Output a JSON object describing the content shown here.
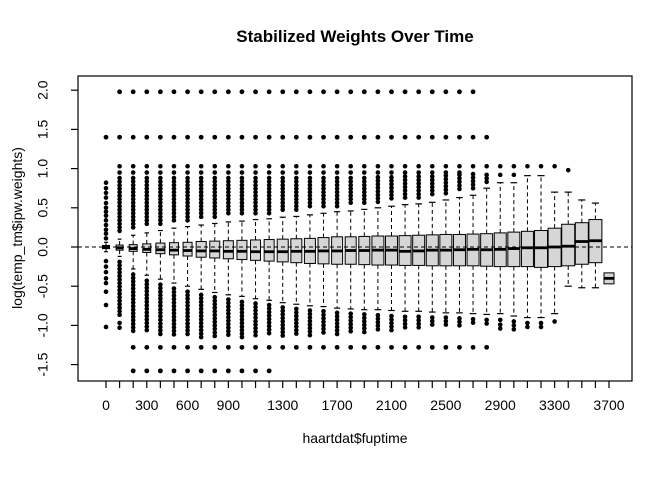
{
  "title": "Stabilized Weights Over Time",
  "chart_data": {
    "type": "boxplot",
    "title": "Stabilized Weights Over Time",
    "xlabel": "haartdat$fuptime",
    "ylabel": "log(temp_tm$ipw.weights)",
    "ylim": [
      -1.7,
      2.17
    ],
    "grid": false,
    "legend": null,
    "reference_line": {
      "value": 0,
      "style": "dashed"
    },
    "colors": {
      "box_fill": "#d6d6d6",
      "stroke": "#000000",
      "background": "#ffffff"
    },
    "y_ticks": [
      {
        "text": "-1.5",
        "value": -1.5
      },
      {
        "text": "-1.0",
        "value": -1.0
      },
      {
        "text": "-0.5",
        "value": -0.5
      },
      {
        "text": "0.0",
        "value": 0.0
      },
      {
        "text": "0.5",
        "value": 0.5
      },
      {
        "text": "1.0",
        "value": 1.0
      },
      {
        "text": "1.5",
        "value": 1.5
      },
      {
        "text": "2.0",
        "value": 2.0
      }
    ],
    "x_tick_labels": [
      {
        "text": "0",
        "index": 0
      },
      {
        "text": "300",
        "index": 3
      },
      {
        "text": "600",
        "index": 6
      },
      {
        "text": "900",
        "index": 9
      },
      {
        "text": "1300",
        "index": 13
      },
      {
        "text": "1700",
        "index": 17
      },
      {
        "text": "2100",
        "index": 21
      },
      {
        "text": "2500",
        "index": 25
      },
      {
        "text": "2900",
        "index": 29
      },
      {
        "text": "3300",
        "index": 33
      },
      {
        "text": "3700",
        "index": 37
      }
    ],
    "column_dot_step": 0.045,
    "outlier_rows": [
      {
        "value": 1.98,
        "from_index": 1,
        "to_index": 27
      },
      {
        "value": 1.4,
        "from_index": 0,
        "to_index": 28
      },
      {
        "value": -1.28,
        "from_index": 2,
        "to_index": 28
      },
      {
        "value": -1.58,
        "from_index": 2,
        "to_index": 12
      }
    ],
    "boxes": [
      {
        "t": 0,
        "q1": -0.02,
        "med": 0.0,
        "q3": 0.02,
        "wlo": -0.06,
        "whi": 0.06,
        "w": 7,
        "ucol": null,
        "udots": [
          0.82,
          0.75,
          0.69,
          0.63,
          0.56,
          0.5,
          0.45,
          0.4,
          0.34,
          0.28,
          0.22,
          0.17,
          0.11
        ],
        "lcol": null,
        "ldots": [
          -0.18,
          -0.25,
          -0.32,
          -0.4,
          -0.46,
          -0.57,
          -0.74,
          -1.02
        ]
      },
      {
        "t": 100,
        "q1": -0.04,
        "med": -0.01,
        "q3": 0.025,
        "wlo": -0.12,
        "whi": 0.1,
        "w": 7,
        "ucol": [
          0.18,
          0.88
        ],
        "udots": [
          1.03,
          0.95
        ],
        "lcol": [
          -0.87,
          -0.19
        ],
        "ldots": [
          -0.97,
          -1.03
        ]
      },
      {
        "t": 200,
        "q1": -0.055,
        "med": -0.02,
        "q3": 0.03,
        "wlo": -0.28,
        "whi": 0.15,
        "w": 8,
        "ucol": [
          0.22,
          0.88
        ],
        "udots": [
          1.03,
          0.95
        ],
        "lcol": [
          -1.08,
          -0.35
        ],
        "ldots": []
      },
      {
        "t": 300,
        "q1": -0.07,
        "med": -0.03,
        "q3": 0.04,
        "wlo": -0.36,
        "whi": 0.18,
        "w": 8,
        "ucol": [
          0.26,
          0.88
        ],
        "udots": [
          1.03,
          0.95
        ],
        "lcol": [
          -1.1,
          -0.43
        ],
        "ldots": []
      },
      {
        "t": 400,
        "q1": -0.085,
        "med": -0.035,
        "q3": 0.05,
        "wlo": -0.41,
        "whi": 0.21,
        "w": 9,
        "ucol": [
          0.28,
          0.88
        ],
        "udots": [
          1.03,
          0.95
        ],
        "lcol": [
          -1.12,
          -0.48
        ],
        "ldots": []
      },
      {
        "t": 500,
        "q1": -0.1,
        "med": -0.04,
        "q3": 0.055,
        "wlo": -0.46,
        "whi": 0.24,
        "w": 9,
        "ucol": [
          0.31,
          0.88
        ],
        "udots": [
          1.03,
          0.95
        ],
        "lcol": [
          -1.14,
          -0.53
        ],
        "ldots": []
      },
      {
        "t": 600,
        "q1": -0.115,
        "med": -0.045,
        "q3": 0.06,
        "wlo": -0.5,
        "whi": 0.26,
        "w": 9,
        "ucol": [
          0.33,
          0.88
        ],
        "udots": [
          1.03,
          0.95
        ],
        "lcol": [
          -1.15,
          -0.57
        ],
        "ldots": []
      },
      {
        "t": 700,
        "q1": -0.13,
        "med": -0.05,
        "q3": 0.07,
        "wlo": -0.54,
        "whi": 0.28,
        "w": 10,
        "ucol": [
          0.35,
          0.88
        ],
        "udots": [
          1.03,
          0.95
        ],
        "lcol": [
          -1.15,
          -0.61
        ],
        "ldots": []
      },
      {
        "t": 800,
        "q1": -0.14,
        "med": -0.05,
        "q3": 0.075,
        "wlo": -0.58,
        "whi": 0.3,
        "w": 10,
        "ucol": [
          0.37,
          0.88
        ],
        "udots": [
          1.03,
          0.95
        ],
        "lcol": [
          -1.15,
          -0.64
        ],
        "ldots": []
      },
      {
        "t": 900,
        "q1": -0.15,
        "med": -0.055,
        "q3": 0.08,
        "wlo": -0.61,
        "whi": 0.32,
        "w": 10,
        "ucol": [
          0.39,
          0.88
        ],
        "udots": [
          1.03,
          0.95
        ],
        "lcol": [
          -1.15,
          -0.67
        ],
        "ldots": []
      },
      {
        "t": 1000,
        "q1": -0.16,
        "med": -0.055,
        "q3": 0.085,
        "wlo": -0.63,
        "whi": 0.33,
        "w": 10,
        "ucol": [
          0.4,
          0.88
        ],
        "udots": [
          1.03,
          0.95
        ],
        "lcol": [
          -1.15,
          -0.7
        ],
        "ldots": []
      },
      {
        "t": 1100,
        "q1": -0.17,
        "med": -0.06,
        "q3": 0.09,
        "wlo": -0.66,
        "whi": 0.35,
        "w": 10,
        "ucol": [
          0.42,
          0.88
        ],
        "udots": [
          1.03,
          0.95
        ],
        "lcol": [
          -1.15,
          -0.72
        ],
        "ldots": []
      },
      {
        "t": 1200,
        "q1": -0.18,
        "med": -0.06,
        "q3": 0.095,
        "wlo": -0.68,
        "whi": 0.36,
        "w": 10,
        "ucol": [
          0.43,
          0.88
        ],
        "udots": [
          1.03,
          0.95
        ],
        "lcol": [
          -1.14,
          -0.74
        ],
        "ldots": []
      },
      {
        "t": 1300,
        "q1": -0.19,
        "med": -0.06,
        "q3": 0.1,
        "wlo": -0.71,
        "whi": 0.38,
        "w": 11,
        "ucol": [
          0.45,
          0.88
        ],
        "udots": [
          1.03,
          0.95
        ],
        "lcol": [
          -1.14,
          -0.77
        ],
        "ldots": []
      },
      {
        "t": 1400,
        "q1": -0.2,
        "med": -0.055,
        "q3": 0.105,
        "wlo": -0.73,
        "whi": 0.39,
        "w": 11,
        "ucol": [
          0.46,
          0.88
        ],
        "udots": [
          1.03,
          0.95
        ],
        "lcol": [
          -1.13,
          -0.79
        ],
        "ldots": []
      },
      {
        "t": 1500,
        "q1": -0.21,
        "med": -0.055,
        "q3": 0.11,
        "wlo": -0.75,
        "whi": 0.41,
        "w": 11,
        "ucol": [
          0.48,
          0.88
        ],
        "udots": [
          1.03,
          0.95
        ],
        "lcol": [
          -1.13,
          -0.81
        ],
        "ldots": []
      },
      {
        "t": 1600,
        "q1": -0.215,
        "med": -0.05,
        "q3": 0.12,
        "wlo": -0.76,
        "whi": 0.43,
        "w": 11,
        "ucol": [
          0.5,
          0.88
        ],
        "udots": [
          1.03,
          0.95
        ],
        "lcol": [
          -1.12,
          -0.82
        ],
        "ldots": []
      },
      {
        "t": 1700,
        "q1": -0.22,
        "med": -0.05,
        "q3": 0.13,
        "wlo": -0.78,
        "whi": 0.45,
        "w": 11,
        "ucol": [
          0.52,
          0.88
        ],
        "udots": [
          1.03,
          0.95
        ],
        "lcol": [
          -1.12,
          -0.84
        ],
        "ldots": []
      },
      {
        "t": 1800,
        "q1": -0.22,
        "med": -0.045,
        "q3": 0.13,
        "wlo": -0.79,
        "whi": 0.46,
        "w": 11,
        "ucol": [
          0.53,
          0.88
        ],
        "udots": [
          1.03,
          0.95
        ],
        "lcol": [
          -1.11,
          -0.85
        ],
        "ldots": []
      },
      {
        "t": 1900,
        "q1": -0.225,
        "med": -0.045,
        "q3": 0.135,
        "wlo": -0.8,
        "whi": 0.48,
        "w": 11,
        "ucol": [
          0.55,
          0.88
        ],
        "udots": [
          1.03,
          0.95
        ],
        "lcol": [
          -1.1,
          -0.86
        ],
        "ldots": []
      },
      {
        "t": 2000,
        "q1": -0.23,
        "med": -0.04,
        "q3": 0.14,
        "wlo": -0.8,
        "whi": 0.5,
        "w": 12,
        "ucol": [
          0.57,
          0.89
        ],
        "udots": [
          1.03,
          0.95
        ],
        "lcol": [
          -1.08,
          -0.87
        ],
        "ldots": []
      },
      {
        "t": 2100,
        "q1": -0.23,
        "med": -0.04,
        "q3": 0.14,
        "wlo": -0.81,
        "whi": 0.52,
        "w": 12,
        "ucol": [
          0.59,
          0.89
        ],
        "udots": [
          1.03,
          0.95
        ],
        "lcol": [
          -1.06,
          -0.88
        ],
        "ldots": []
      },
      {
        "t": 2200,
        "q1": -0.235,
        "med": -0.055,
        "q3": 0.145,
        "wlo": -0.82,
        "whi": 0.54,
        "w": 12,
        "ucol": [
          0.61,
          0.9
        ],
        "udots": [
          1.03,
          0.95
        ],
        "lcol": [
          -1.05,
          -0.89
        ],
        "ldots": []
      },
      {
        "t": 2300,
        "q1": -0.235,
        "med": -0.05,
        "q3": 0.15,
        "wlo": -0.82,
        "whi": 0.55,
        "w": 12,
        "ucol": [
          0.62,
          0.9
        ],
        "udots": [
          1.03,
          0.95
        ],
        "lcol": [
          -1.04,
          -0.89
        ],
        "ldots": []
      },
      {
        "t": 2400,
        "q1": -0.24,
        "med": -0.04,
        "q3": 0.155,
        "wlo": -0.83,
        "whi": 0.57,
        "w": 12,
        "ucol": [
          0.64,
          0.9
        ],
        "udots": [
          1.03,
          0.95
        ],
        "lcol": [
          -1.03,
          -0.9
        ],
        "ldots": []
      },
      {
        "t": 2500,
        "q1": -0.24,
        "med": -0.04,
        "q3": 0.16,
        "wlo": -0.84,
        "whi": 0.6,
        "w": 12,
        "ucol": [
          0.67,
          0.91
        ],
        "udots": [
          1.03,
          0.95
        ],
        "lcol": [
          -1.02,
          -0.9
        ],
        "ldots": []
      },
      {
        "t": 2600,
        "q1": -0.24,
        "med": -0.035,
        "q3": 0.16,
        "wlo": -0.84,
        "whi": 0.63,
        "w": 12,
        "ucol": [
          0.7,
          0.92
        ],
        "udots": [
          1.03,
          0.95
        ],
        "lcol": [
          -1.01,
          -0.91
        ],
        "ldots": []
      },
      {
        "t": 2700,
        "q1": -0.24,
        "med": -0.03,
        "q3": 0.165,
        "wlo": -0.85,
        "whi": 0.66,
        "w": 12,
        "ucol": [
          0.73,
          0.93
        ],
        "udots": [
          1.03
        ],
        "lcol": [
          -1.0,
          -0.92
        ],
        "ldots": []
      },
      {
        "t": 2800,
        "q1": -0.245,
        "med": -0.035,
        "q3": 0.17,
        "wlo": -0.86,
        "whi": 0.75,
        "w": 12,
        "ucol": [
          0.8,
          0.92
        ],
        "udots": [
          1.03
        ],
        "lcol": [
          -1.0,
          -0.93
        ],
        "ldots": []
      },
      {
        "t": 2900,
        "q1": -0.25,
        "med": -0.03,
        "q3": 0.18,
        "wlo": -0.85,
        "whi": 0.82,
        "w": 12,
        "ucol": null,
        "udots": [
          1.03,
          0.92
        ],
        "lcol": null,
        "ldots": [
          -0.93,
          -0.99,
          -1.04
        ]
      },
      {
        "t": 3000,
        "q1": -0.25,
        "med": -0.02,
        "q3": 0.19,
        "wlo": -0.88,
        "whi": 0.82,
        "w": 12,
        "ucol": null,
        "udots": [
          1.03,
          0.92
        ],
        "lcol": null,
        "ldots": [
          -0.95,
          -1.0,
          -1.05
        ]
      },
      {
        "t": 3100,
        "q1": -0.25,
        "med": -0.01,
        "q3": 0.2,
        "wlo": -0.9,
        "whi": 0.91,
        "w": 12,
        "ucol": null,
        "udots": [
          1.03
        ],
        "lcol": null,
        "ldots": [
          -0.97,
          -1.02
        ]
      },
      {
        "t": 3200,
        "q1": -0.26,
        "med": -0.01,
        "q3": 0.21,
        "wlo": -0.9,
        "whi": 0.91,
        "w": 13,
        "ucol": null,
        "udots": [
          1.03
        ],
        "lcol": null,
        "ldots": [
          -0.97,
          -1.02
        ]
      },
      {
        "t": 3300,
        "q1": -0.25,
        "med": 0.0,
        "q3": 0.24,
        "wlo": -0.85,
        "whi": 0.7,
        "w": 13,
        "ucol": null,
        "udots": [
          1.03
        ],
        "lcol": null,
        "ldots": [
          -0.95
        ]
      },
      {
        "t": 3400,
        "q1": -0.24,
        "med": 0.01,
        "q3": 0.29,
        "wlo": -0.5,
        "whi": 0.7,
        "w": 13,
        "ucol": null,
        "udots": [
          0.98
        ],
        "lcol": null,
        "ldots": []
      },
      {
        "t": 3500,
        "q1": -0.22,
        "med": 0.07,
        "q3": 0.31,
        "wlo": -0.52,
        "whi": 0.6,
        "w": 13,
        "ucol": null,
        "udots": [],
        "lcol": null,
        "ldots": []
      },
      {
        "t": 3600,
        "q1": -0.2,
        "med": 0.08,
        "q3": 0.35,
        "wlo": -0.52,
        "whi": 0.56,
        "w": 13,
        "ucol": null,
        "udots": [],
        "lcol": null,
        "ldots": []
      },
      {
        "t": 3700,
        "q1": -0.47,
        "med": -0.4,
        "q3": -0.33,
        "wlo": null,
        "whi": null,
        "w": 10,
        "ucol": null,
        "udots": [],
        "lcol": null,
        "ldots": []
      }
    ]
  }
}
